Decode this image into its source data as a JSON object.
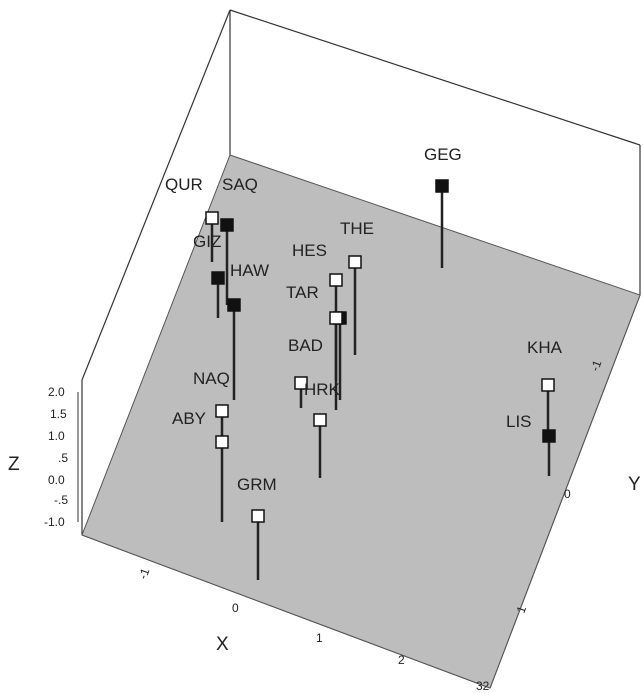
{
  "chart_data": {
    "type": "scatter",
    "title": "",
    "axes": {
      "x": {
        "label": "X",
        "ticks": [
          "-1",
          "0",
          "1",
          "2",
          "32"
        ]
      },
      "y": {
        "label": "Y",
        "ticks": [
          "-1",
          "0",
          "1"
        ]
      },
      "z": {
        "label": "Z",
        "ticks": [
          "2.0",
          "1.5",
          "1.0",
          ".5",
          "0.0",
          "-.5",
          "-1.0"
        ]
      }
    },
    "plane_color": "#bdbdbd",
    "marker_colors": {
      "open": "#ffffff",
      "filled": "#111111"
    },
    "points": [
      {
        "label": "QUR",
        "marker": "open"
      },
      {
        "label": "SAQ",
        "marker": "filled"
      },
      {
        "label": "GIZ",
        "marker": "filled"
      },
      {
        "label": "HAW",
        "marker": "filled"
      },
      {
        "label": "GEG",
        "marker": "filled"
      },
      {
        "label": "THE",
        "marker": "open"
      },
      {
        "label": "HES",
        "marker": "open"
      },
      {
        "label": "TAR",
        "marker": "filled"
      },
      {
        "label": "BAD",
        "marker": "open"
      },
      {
        "label": "NAQ",
        "marker": "open"
      },
      {
        "label": "HRK",
        "marker": "open"
      },
      {
        "label": "ABY",
        "marker": "open"
      },
      {
        "label": "GRM",
        "marker": "open"
      },
      {
        "label": "KHA",
        "marker": "open"
      },
      {
        "label": "LIS",
        "marker": "filled"
      }
    ]
  }
}
